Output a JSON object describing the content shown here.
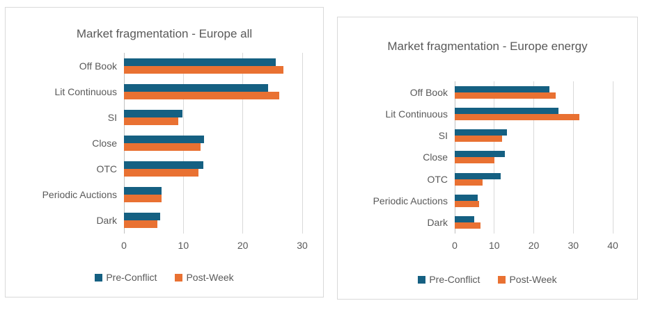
{
  "colors": {
    "pre_conflict": "#156082",
    "post_week": "#E97132",
    "gridline": "#D9D9D9",
    "text": "#595959"
  },
  "chart_data": [
    {
      "type": "bar",
      "orientation": "horizontal",
      "title": "Market fragmentation - Europe all",
      "categories": [
        "Off Book",
        "Lit Continuous",
        "SI",
        "Close",
        "OTC",
        "Periodic Auctions",
        "Dark"
      ],
      "series": [
        {
          "name": "Pre-Conflict",
          "color": "#156082",
          "values": [
            25.5,
            24.3,
            9.8,
            13.5,
            13.4,
            6.3,
            6.1
          ]
        },
        {
          "name": "Post-Week",
          "color": "#E97132",
          "values": [
            26.8,
            26.1,
            9.1,
            12.9,
            12.5,
            6.3,
            5.6
          ]
        }
      ],
      "xlabel": "",
      "ylabel": "",
      "xlim": [
        0,
        30
      ],
      "xticks": [
        0,
        10,
        20,
        30
      ],
      "grid": true,
      "legend_position": "bottom"
    },
    {
      "type": "bar",
      "orientation": "horizontal",
      "title": "Market fragmentation - Europe energy",
      "categories": [
        "Off Book",
        "Lit Continuous",
        "SI",
        "Close",
        "OTC",
        "Periodic Auctions",
        "Dark"
      ],
      "series": [
        {
          "name": "Pre-Conflict",
          "color": "#156082",
          "values": [
            24.0,
            26.3,
            13.3,
            12.6,
            11.6,
            5.8,
            4.9
          ]
        },
        {
          "name": "Post-Week",
          "color": "#E97132",
          "values": [
            25.5,
            31.6,
            12.0,
            10.0,
            7.0,
            6.1,
            6.6
          ]
        }
      ],
      "xlabel": "",
      "ylabel": "",
      "xlim": [
        0,
        40
      ],
      "xticks": [
        0,
        10,
        20,
        30,
        40
      ],
      "grid": true,
      "legend_position": "bottom"
    }
  ]
}
